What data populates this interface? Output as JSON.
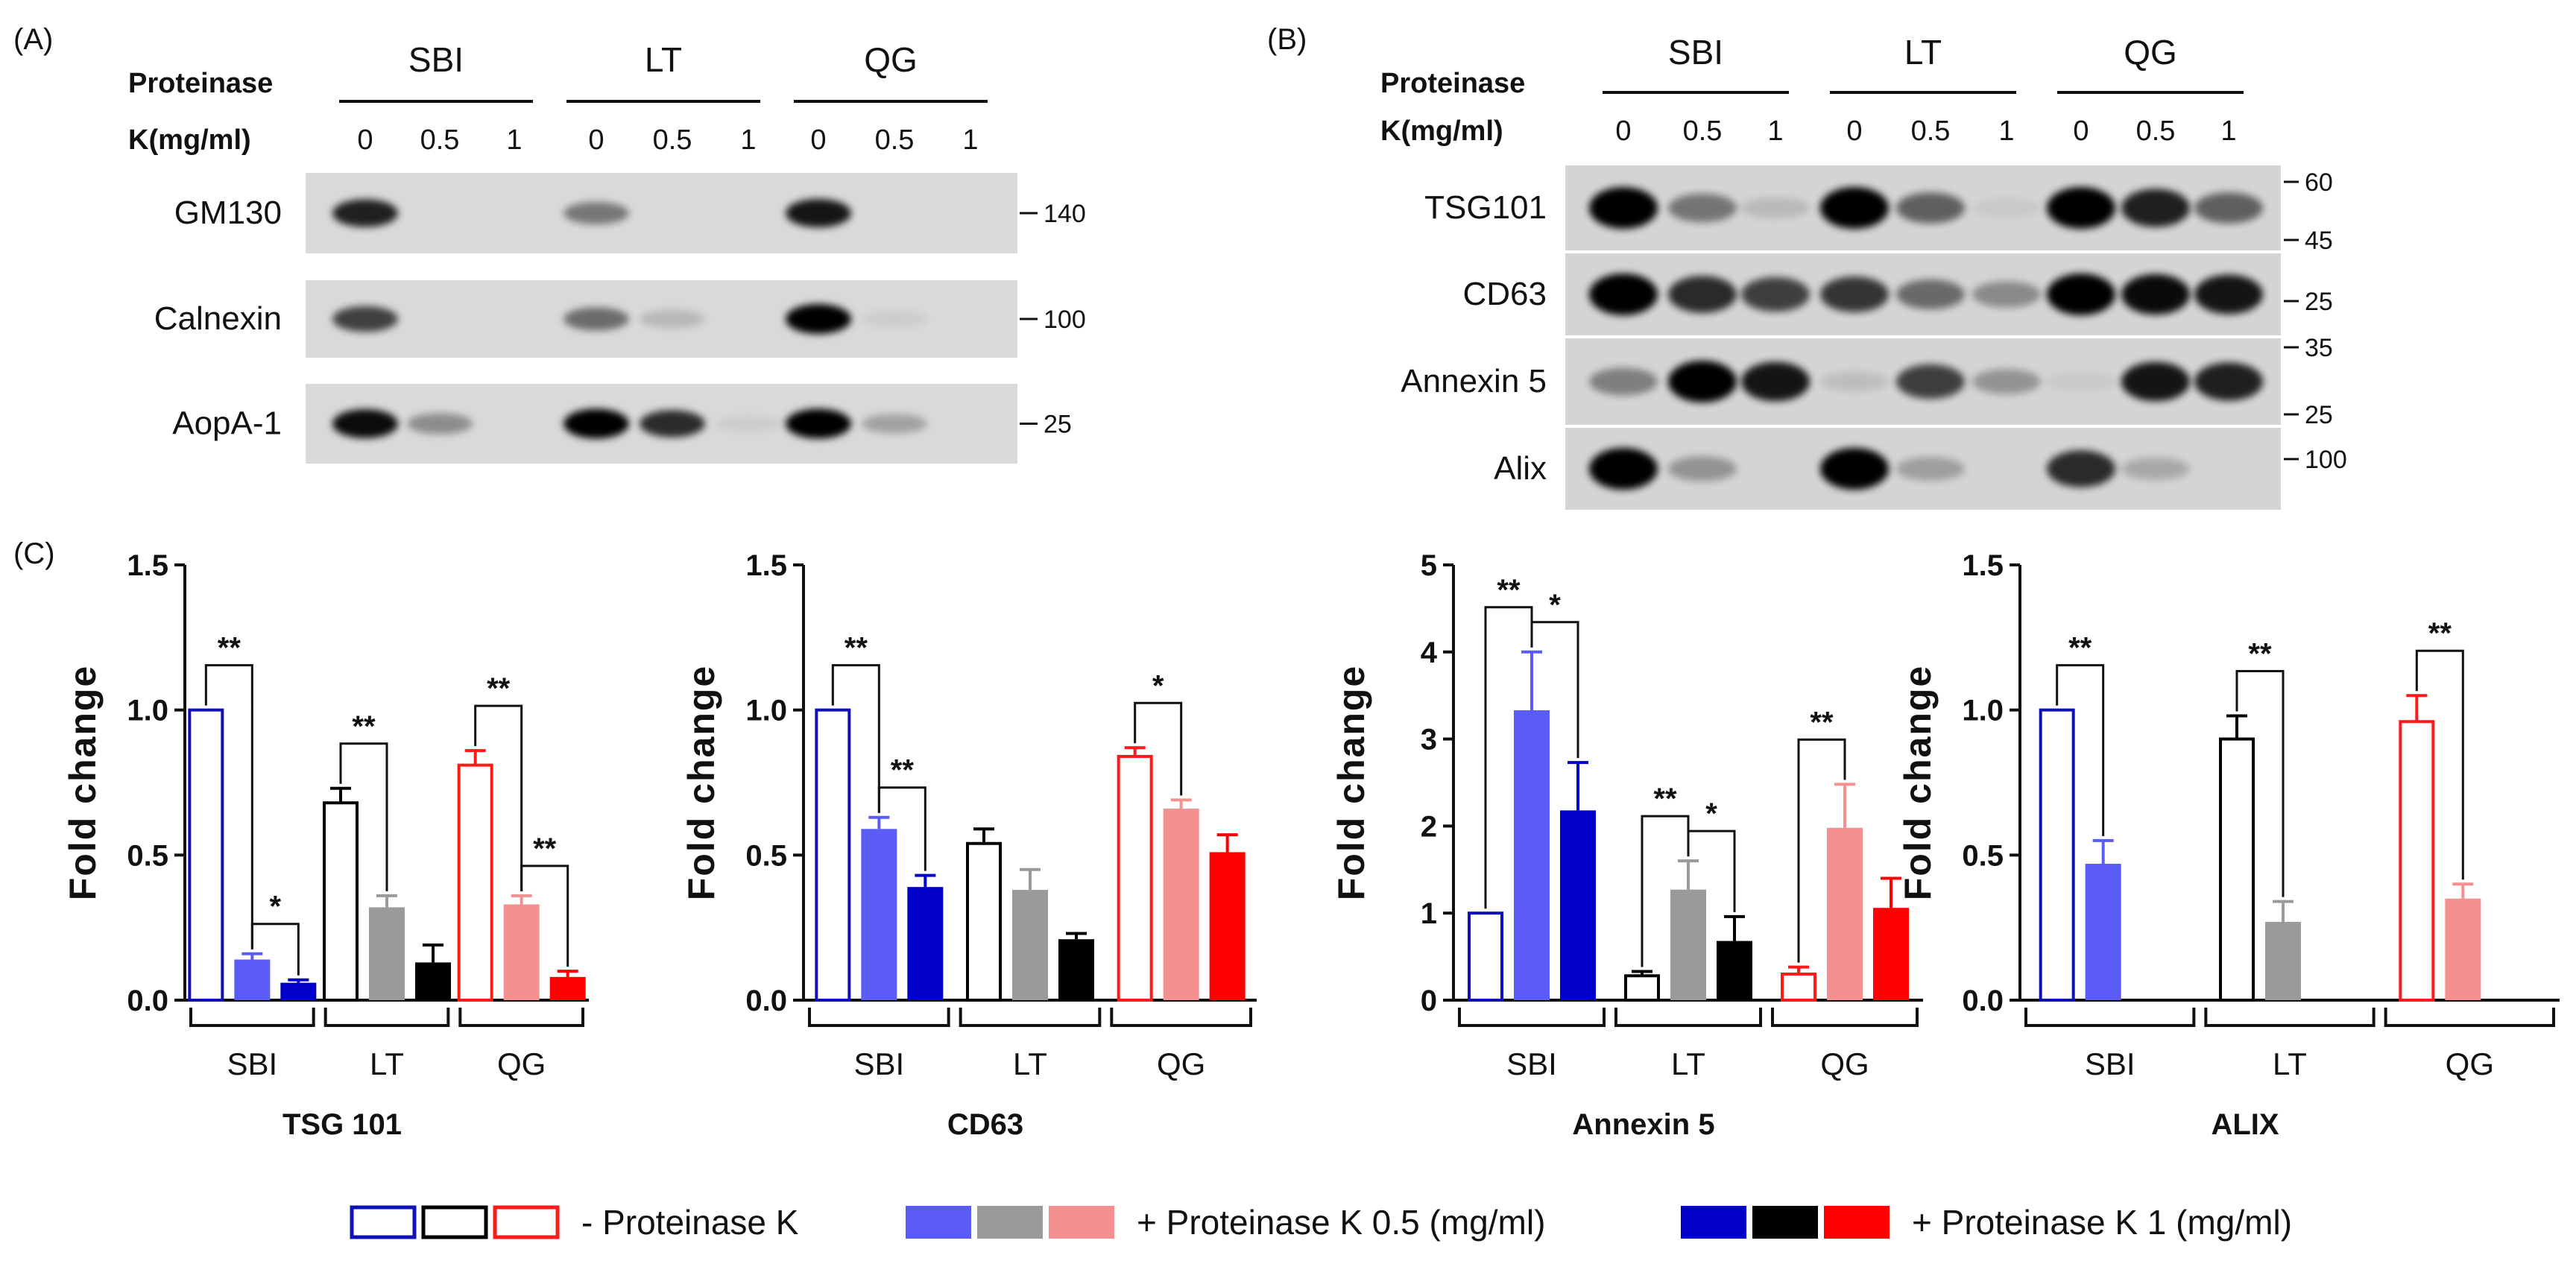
{
  "panelA": {
    "label": "(A)",
    "pk_line1": "Proteinase",
    "pk_line2": "K(mg/ml)",
    "groups": [
      "SBI",
      "LT",
      "QG"
    ],
    "concentrations": [
      "0",
      "0.5",
      "1"
    ],
    "blots": [
      {
        "name": "GM130",
        "marker": "140",
        "intensity": [
          0.85,
          0,
          0,
          0.45,
          0,
          0,
          0.9,
          0,
          0
        ]
      },
      {
        "name": "Calnexin",
        "marker": "100",
        "intensity": [
          0.7,
          0,
          0,
          0.5,
          0.15,
          0,
          1.0,
          0.05,
          0
        ]
      },
      {
        "name": "AopA-1",
        "marker": "25",
        "intensity": [
          0.95,
          0.35,
          0,
          1.0,
          0.8,
          0.05,
          1.0,
          0.25,
          0
        ]
      }
    ]
  },
  "panelB": {
    "label": "(B)",
    "pk_line1": "Proteinase",
    "pk_line2": "K(mg/ml)",
    "groups": [
      "SBI",
      "LT",
      "QG"
    ],
    "concentrations": [
      "0",
      "0.5",
      "1"
    ],
    "blots": [
      {
        "name": "TSG101",
        "markers": [
          "60",
          "45"
        ],
        "intensity": [
          1.0,
          0.45,
          0.12,
          1.0,
          0.55,
          0.05,
          1.0,
          0.85,
          0.55
        ]
      },
      {
        "name": "CD63",
        "markers": [
          "25"
        ],
        "intensity": [
          1.0,
          0.8,
          0.7,
          0.75,
          0.5,
          0.35,
          1.0,
          0.95,
          0.9
        ]
      },
      {
        "name": "Annexin 5",
        "markers": [
          "35",
          "25"
        ],
        "intensity": [
          0.4,
          1.0,
          0.9,
          0.1,
          0.7,
          0.3,
          0.05,
          0.9,
          0.85
        ]
      },
      {
        "name": "Alix",
        "markers": [
          "100"
        ],
        "intensity": [
          1.0,
          0.3,
          0,
          1.0,
          0.25,
          0,
          0.8,
          0.2,
          0
        ]
      }
    ]
  },
  "panelC": {
    "label": "(C)"
  },
  "chart_data": [
    {
      "type": "bar",
      "title": "TSG 101",
      "ylabel": "Fold change",
      "ylim": [
        0,
        1.5
      ],
      "yticks": [
        "0.0",
        "0.5",
        "1.0",
        "1.5"
      ],
      "categories": [
        "SBI",
        "LT",
        "QG"
      ],
      "series": [
        {
          "name": "- Proteinase K",
          "values": [
            1.0,
            0.68,
            0.81
          ],
          "errors": [
            0,
            0.05,
            0.05
          ]
        },
        {
          "name": "+ Proteinase K 0.5 (mg/ml)",
          "values": [
            0.14,
            0.32,
            0.33
          ],
          "errors": [
            0.02,
            0.04,
            0.03
          ]
        },
        {
          "name": "+ Proteinase K 1 (mg/ml)",
          "values": [
            0.06,
            0.13,
            0.08
          ],
          "errors": [
            0.01,
            0.06,
            0.02
          ]
        }
      ],
      "significance": [
        {
          "cat": 0,
          "from": 0,
          "to": 1,
          "label": "**"
        },
        {
          "cat": 0,
          "from": 1,
          "to": 2,
          "label": "*"
        },
        {
          "cat": 1,
          "from": 0,
          "to": 1,
          "label": "**"
        },
        {
          "cat": 2,
          "from": 0,
          "to": 1,
          "label": "**"
        },
        {
          "cat": 2,
          "from": 1,
          "to": 2,
          "label": "**"
        }
      ]
    },
    {
      "type": "bar",
      "title": "CD63",
      "ylabel": "Fold change",
      "ylim": [
        0,
        1.5
      ],
      "yticks": [
        "0.0",
        "0.5",
        "1.0",
        "1.5"
      ],
      "categories": [
        "SBI",
        "LT",
        "QG"
      ],
      "series": [
        {
          "name": "- Proteinase K",
          "values": [
            1.0,
            0.54,
            0.84
          ],
          "errors": [
            0,
            0.05,
            0.03
          ]
        },
        {
          "name": "+ Proteinase K 0.5 (mg/ml)",
          "values": [
            0.59,
            0.38,
            0.66
          ],
          "errors": [
            0.04,
            0.07,
            0.03
          ]
        },
        {
          "name": "+ Proteinase K 1 (mg/ml)",
          "values": [
            0.39,
            0.21,
            0.51
          ],
          "errors": [
            0.04,
            0.02,
            0.06
          ]
        }
      ],
      "significance": [
        {
          "cat": 0,
          "from": 0,
          "to": 1,
          "label": "**"
        },
        {
          "cat": 0,
          "from": 1,
          "to": 2,
          "label": "**"
        },
        {
          "cat": 2,
          "from": 0,
          "to": 1,
          "label": "*"
        }
      ]
    },
    {
      "type": "bar",
      "title": "Annexin 5",
      "ylabel": "Fold change",
      "ylim": [
        0,
        5
      ],
      "yticks": [
        "0",
        "1",
        "2",
        "3",
        "4",
        "5"
      ],
      "categories": [
        "SBI",
        "LT",
        "QG"
      ],
      "series": [
        {
          "name": "- Proteinase K",
          "values": [
            1.0,
            0.28,
            0.3
          ],
          "errors": [
            0,
            0.05,
            0.08
          ]
        },
        {
          "name": "+ Proteinase K 0.5 (mg/ml)",
          "values": [
            3.33,
            1.27,
            1.98
          ],
          "errors": [
            0.67,
            0.33,
            0.5
          ]
        },
        {
          "name": "+ Proteinase K 1 (mg/ml)",
          "values": [
            2.18,
            0.68,
            1.06
          ],
          "errors": [
            0.55,
            0.28,
            0.34
          ]
        }
      ],
      "significance": [
        {
          "cat": 0,
          "from": 0,
          "to": 1,
          "label": "**"
        },
        {
          "cat": 0,
          "from": 1,
          "to": 2,
          "label": "*"
        },
        {
          "cat": 1,
          "from": 0,
          "to": 1,
          "label": "**"
        },
        {
          "cat": 1,
          "from": 1,
          "to": 2,
          "label": "*"
        },
        {
          "cat": 2,
          "from": 0,
          "to": 1,
          "label": "**"
        }
      ]
    },
    {
      "type": "bar",
      "title": "ALIX",
      "ylabel": "Fold change",
      "ylim": [
        0,
        1.5
      ],
      "yticks": [
        "0.0",
        "0.5",
        "1.0",
        "1.5"
      ],
      "categories": [
        "SBI",
        "LT",
        "QG"
      ],
      "series": [
        {
          "name": "- Proteinase K",
          "values": [
            1.0,
            0.9,
            0.96
          ],
          "errors": [
            0,
            0.08,
            0.09
          ]
        },
        {
          "name": "+ Proteinase K 0.5 (mg/ml)",
          "values": [
            0.47,
            0.27,
            0.35
          ],
          "errors": [
            0.08,
            0.07,
            0.05
          ]
        }
      ],
      "significance": [
        {
          "cat": 0,
          "from": 0,
          "to": 1,
          "label": "**"
        },
        {
          "cat": 1,
          "from": 0,
          "to": 1,
          "label": "**"
        },
        {
          "cat": 2,
          "from": 0,
          "to": 1,
          "label": "**"
        }
      ]
    }
  ],
  "colors": {
    "SBI": [
      "#1010b8",
      "#5b5bf5",
      "#0000c8"
    ],
    "LT": [
      "#000000",
      "#9a9a9a",
      "#000000"
    ],
    "QG": [
      "#ff1a1a",
      "#f59090",
      "#ff0000"
    ]
  },
  "legend": {
    "items": [
      {
        "label": "- Proteinase K",
        "style": "outline"
      },
      {
        "label": "+ Proteinase K 0.5 (mg/ml)",
        "style": "mid"
      },
      {
        "label": "+ Proteinase K 1 (mg/ml)",
        "style": "dark"
      }
    ]
  }
}
